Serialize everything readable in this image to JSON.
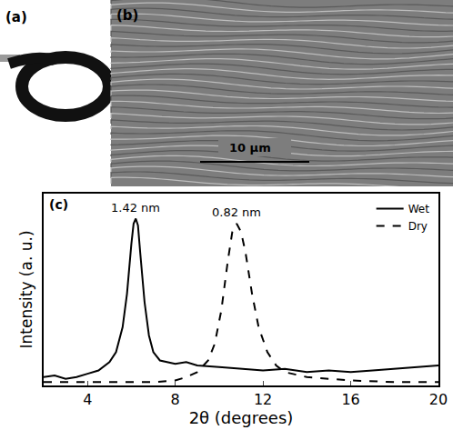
{
  "panels": [
    {
      "label": "(a)"
    },
    {
      "label": "(b)",
      "scale_bar": "10 μm"
    }
  ],
  "chart_data": {
    "type": "line",
    "panel_label": "(c)",
    "x_label": "2θ (degrees)",
    "y_label": "Intensity (a. u.)",
    "xlim": [
      2,
      20
    ],
    "xticks": [
      4,
      8,
      12,
      16,
      20
    ],
    "ylim": [
      0,
      1.15
    ],
    "yticks": [],
    "tick_labels": "x",
    "legend": "top right",
    "grid": false,
    "series": [
      {
        "name": "Wet",
        "color": "#000000",
        "line_style": "solid",
        "x": [
          2,
          2.5,
          3,
          3.5,
          4,
          4.5,
          5,
          5.3,
          5.6,
          5.8,
          6.0,
          6.1,
          6.2,
          6.3,
          6.4,
          6.6,
          6.8,
          7.0,
          7.3,
          7.6,
          8,
          8.5,
          9,
          10,
          11,
          12,
          13,
          14,
          15,
          16,
          17,
          18,
          19,
          20
        ],
        "values": [
          0.05,
          0.06,
          0.04,
          0.05,
          0.07,
          0.09,
          0.14,
          0.2,
          0.35,
          0.55,
          0.85,
          0.97,
          1.0,
          0.96,
          0.8,
          0.5,
          0.3,
          0.2,
          0.15,
          0.14,
          0.13,
          0.14,
          0.12,
          0.11,
          0.1,
          0.09,
          0.1,
          0.08,
          0.09,
          0.08,
          0.09,
          0.1,
          0.11,
          0.12
        ]
      },
      {
        "name": "Dry",
        "color": "#000000",
        "line_style": "dashed",
        "x": [
          2,
          4,
          6,
          7,
          8,
          8.5,
          9,
          9.5,
          9.8,
          10.1,
          10.4,
          10.6,
          10.8,
          11.0,
          11.2,
          11.5,
          11.8,
          12.2,
          12.6,
          13,
          14,
          16,
          18,
          20
        ],
        "values": [
          0.02,
          0.02,
          0.02,
          0.02,
          0.03,
          0.05,
          0.08,
          0.15,
          0.25,
          0.45,
          0.75,
          0.92,
          0.97,
          0.92,
          0.8,
          0.55,
          0.35,
          0.2,
          0.12,
          0.08,
          0.05,
          0.03,
          0.02,
          0.02
        ]
      }
    ],
    "annotations": [
      {
        "text": "1.42 nm",
        "x": 6.2,
        "y": 1.0
      },
      {
        "text": "0.82 nm",
        "x": 10.8,
        "y": 0.97
      }
    ]
  }
}
